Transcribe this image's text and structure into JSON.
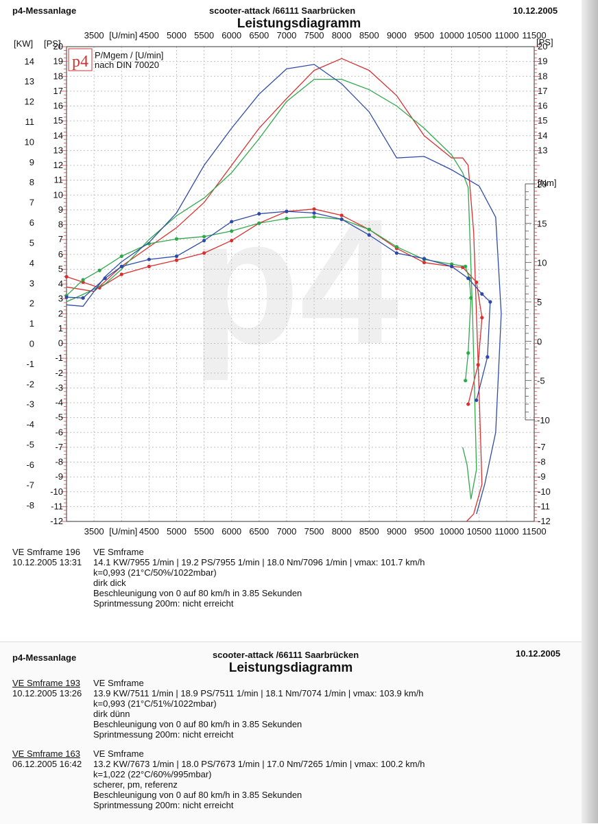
{
  "header": {
    "left": "p4-Messanlage",
    "center": "scooter-attack  /66111 Saarbrücken",
    "date": "10.12.2005",
    "title": "Leistungsdiagramm"
  },
  "logo": {
    "text": "p4",
    "line1": "P/Mgem / [U/min]",
    "line2": "nach DIN 70020"
  },
  "watermark": "p4",
  "colors": {
    "red": "#d9302f",
    "green": "#2fa84a",
    "blue": "#2e4aa8",
    "grid": "#bfbfbf",
    "tick": "#c94040"
  },
  "chart_data": {
    "type": "line",
    "x_axis": {
      "label": "[U/min]",
      "min": 3000,
      "max": 11500,
      "ticks": [
        3500,
        4500,
        5000,
        5500,
        6000,
        6500,
        7000,
        7500,
        8000,
        8500,
        9000,
        9500,
        10000,
        10500,
        11000,
        11500
      ]
    },
    "left_axes": {
      "kw": {
        "label": "[KW]",
        "min": -8,
        "max": 14
      },
      "ps": {
        "label": "[PS]",
        "min": -12,
        "max": 20
      }
    },
    "right_axes": {
      "ps": {
        "label": "[PS]",
        "ticks_upper": [
          20,
          19,
          18,
          17,
          16,
          15,
          14,
          13
        ],
        "ticks_lower": [
          -7,
          -8,
          -9,
          -10,
          -11,
          -12
        ]
      },
      "nm": {
        "label": "[Nm]",
        "min": -10,
        "max": 20,
        "ticks": [
          20,
          15,
          10,
          5,
          0,
          -5,
          -10
        ]
      }
    },
    "series": [
      {
        "color": "red",
        "power_ps": [
          [
            3000,
            3.8
          ],
          [
            3500,
            3.5
          ],
          [
            4000,
            5.2
          ],
          [
            4500,
            6.5
          ],
          [
            5000,
            7.8
          ],
          [
            5500,
            9.5
          ],
          [
            6000,
            12.0
          ],
          [
            6500,
            14.5
          ],
          [
            7000,
            16.5
          ],
          [
            7500,
            18.4
          ],
          [
            8000,
            19.2
          ],
          [
            8500,
            18.4
          ],
          [
            9000,
            16.7
          ],
          [
            9500,
            14.0
          ],
          [
            10000,
            12.5
          ],
          [
            10200,
            12.5
          ],
          [
            10300,
            12.0
          ],
          [
            10400,
            7.5
          ],
          [
            10500,
            -3.5
          ],
          [
            10550,
            -9.5
          ],
          [
            10400,
            -11.5
          ],
          [
            10270,
            -12
          ]
        ],
        "torque_nm": [
          [
            3000,
            8.2
          ],
          [
            3300,
            7.5
          ],
          [
            3600,
            6.8
          ],
          [
            4000,
            8.5
          ],
          [
            4500,
            9.5
          ],
          [
            5000,
            10.3
          ],
          [
            5500,
            11.2
          ],
          [
            6000,
            12.8
          ],
          [
            6500,
            15.0
          ],
          [
            7000,
            16.5
          ],
          [
            7500,
            16.8
          ],
          [
            8000,
            16.0
          ],
          [
            8500,
            14.2
          ],
          [
            9000,
            11.8
          ],
          [
            9500,
            10.0
          ],
          [
            10000,
            9.5
          ],
          [
            10200,
            9.4
          ],
          [
            10450,
            7.5
          ],
          [
            10550,
            3.0
          ],
          [
            10480,
            -3.0
          ],
          [
            10300,
            -8.0
          ]
        ]
      },
      {
        "color": "green",
        "power_ps": [
          [
            3000,
            2.8
          ],
          [
            3300,
            3.3
          ],
          [
            3700,
            4.0
          ],
          [
            4000,
            5.0
          ],
          [
            4500,
            7.0
          ],
          [
            5000,
            8.6
          ],
          [
            5500,
            9.8
          ],
          [
            6000,
            11.5
          ],
          [
            6500,
            13.8
          ],
          [
            7000,
            16.3
          ],
          [
            7500,
            17.8
          ],
          [
            8000,
            17.8
          ],
          [
            8500,
            17.1
          ],
          [
            9000,
            16.0
          ],
          [
            9500,
            14.5
          ],
          [
            10000,
            12.7
          ],
          [
            10200,
            11.5
          ],
          [
            10300,
            10.5
          ],
          [
            10380,
            2.0
          ],
          [
            10450,
            -8.5
          ],
          [
            10350,
            -10.5
          ],
          [
            10280,
            -8.2
          ],
          [
            10200,
            -7.0
          ]
        ],
        "torque_nm": [
          [
            3000,
            5.8
          ],
          [
            3300,
            7.8
          ],
          [
            3600,
            9.0
          ],
          [
            4000,
            10.8
          ],
          [
            4500,
            12.4
          ],
          [
            5000,
            13.0
          ],
          [
            5500,
            13.3
          ],
          [
            6000,
            14.0
          ],
          [
            6500,
            15.0
          ],
          [
            7000,
            15.6
          ],
          [
            7500,
            15.8
          ],
          [
            8000,
            15.5
          ],
          [
            8500,
            14.2
          ],
          [
            9000,
            12.0
          ],
          [
            9500,
            10.4
          ],
          [
            10000,
            9.8
          ],
          [
            10250,
            9.5
          ],
          [
            10320,
            8.0
          ],
          [
            10350,
            5.5
          ],
          [
            10300,
            -1.5
          ],
          [
            10250,
            -5.0
          ]
        ]
      },
      {
        "color": "blue",
        "power_ps": [
          [
            3000,
            2.6
          ],
          [
            3300,
            2.5
          ],
          [
            3700,
            4.5
          ],
          [
            4000,
            5.5
          ],
          [
            4500,
            6.8
          ],
          [
            5000,
            8.8
          ],
          [
            5500,
            12.0
          ],
          [
            6000,
            14.5
          ],
          [
            6500,
            16.8
          ],
          [
            7000,
            18.5
          ],
          [
            7500,
            18.8
          ],
          [
            8000,
            17.5
          ],
          [
            8500,
            15.6
          ],
          [
            9000,
            12.5
          ],
          [
            9500,
            12.6
          ],
          [
            10000,
            11.7
          ],
          [
            10500,
            10.6
          ],
          [
            10800,
            8.5
          ],
          [
            10900,
            2.0
          ],
          [
            10800,
            -6.0
          ],
          [
            10600,
            -9.5
          ],
          [
            10450,
            -11.5
          ]
        ],
        "torque_nm": [
          [
            3000,
            5.6
          ],
          [
            3300,
            5.5
          ],
          [
            3700,
            8.0
          ],
          [
            4000,
            9.5
          ],
          [
            4500,
            10.4
          ],
          [
            5000,
            10.8
          ],
          [
            5500,
            12.8
          ],
          [
            6000,
            15.2
          ],
          [
            6500,
            16.2
          ],
          [
            7000,
            16.5
          ],
          [
            7500,
            16.3
          ],
          [
            8000,
            15.5
          ],
          [
            8500,
            13.5
          ],
          [
            9000,
            11.2
          ],
          [
            9500,
            10.5
          ],
          [
            10000,
            9.5
          ],
          [
            10300,
            8.0
          ],
          [
            10550,
            6.0
          ],
          [
            10700,
            5.0
          ],
          [
            10650,
            -2.0
          ],
          [
            10450,
            -7.5
          ]
        ]
      }
    ]
  },
  "runs": [
    {
      "id_line1": "VE Smframe 196",
      "id_line2": "10.12.2005  13:31",
      "name": "VE Smframe",
      "values": "14.1 KW/7955 1/min  |  19.2 PS/7955 1/min  |  18.0 Nm/7096 1/min | vmax: 101.7 km/h",
      "k": "k=0,993 (21°C/50%/1022mbar)",
      "comment": "dirk dick",
      "accel": "Beschleunigung von 0 auf 80 km/h in 3.85 Sekunden",
      "sprint": "Sprintmessung 200m: nicht erreicht"
    },
    {
      "id_line1": "VE Smframe 193",
      "id_line2": "10.12.2005  13:26",
      "name": "VE Smframe",
      "values": "13.9 KW/7511 1/min  |  18.9 PS/7511 1/min  |  18.1 Nm/7074 1/min | vmax: 103.9 km/h",
      "k": "k=0,993 (21°C/51%/1022mbar)",
      "comment": "dirk dünn",
      "accel": "Beschleunigung von 0 auf 80 km/h in 3.85 Sekunden",
      "sprint": "Sprintmessung 200m: nicht erreicht"
    },
    {
      "id_line1": "VE Smframe 163",
      "id_line2": "06.12.2005  16:42",
      "name": "VE Smframe",
      "values": "13.2 KW/7673 1/min  |  18.0 PS/7673 1/min  |  17.0 Nm/7265 1/min | vmax: 100.2 km/h",
      "k": "k=1,022 (22°C/60%/995mbar)",
      "comment": "scherer, pm, referenz",
      "accel": "Beschleunigung von 0 auf 80 km/h in 3.85 Sekunden",
      "sprint": "Sprintmessung 200m: nicht erreicht"
    }
  ]
}
